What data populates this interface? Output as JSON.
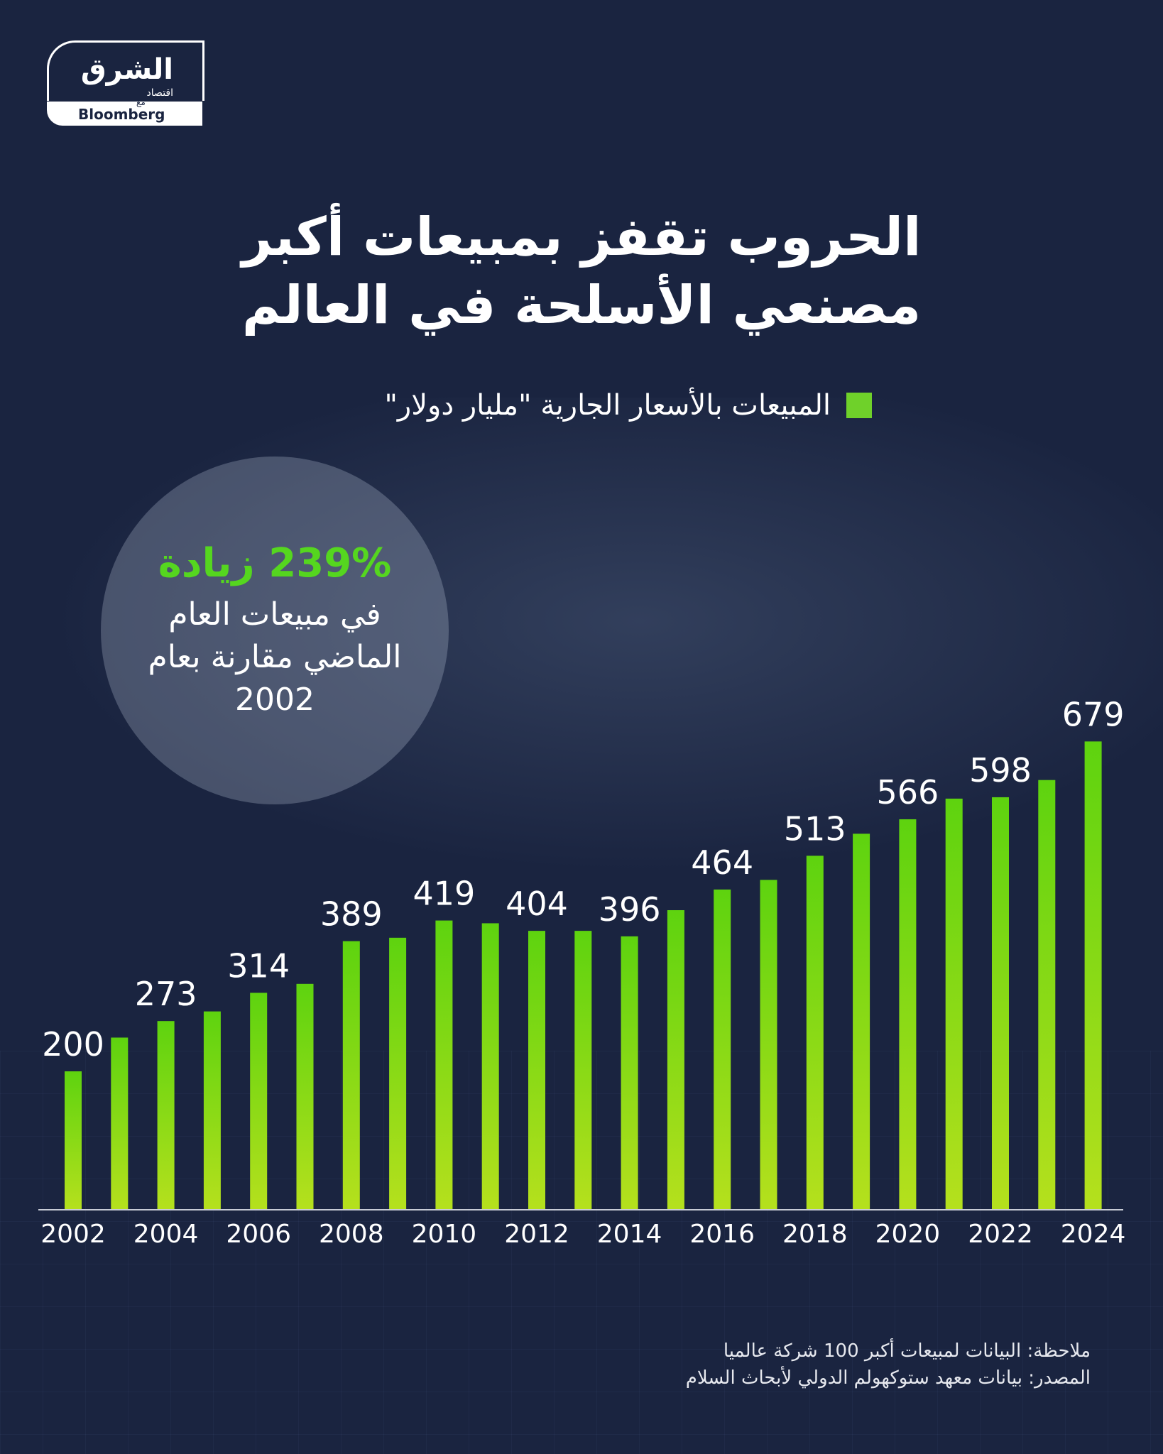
{
  "logo": {
    "main": "الشرق",
    "sub": "اقتصاد",
    "with": "مع",
    "bloomberg": "Bloomberg"
  },
  "title": {
    "line1": "الحروب تقفز بمبيعات أكبر",
    "line2": "مصنعي الأسلحة في العالم"
  },
  "legend": {
    "label": "المبيعات بالأسعار الجارية \"مليار دولار\"",
    "color": "#6fd12a"
  },
  "callout": {
    "headline": "239% زيادة",
    "line1": "في مبيعات العام",
    "line2": "الماضي مقارنة بعام",
    "line3": "2002"
  },
  "chart_data": {
    "type": "bar",
    "categories": [
      "2002",
      "2003",
      "2004",
      "2005",
      "2006",
      "2007",
      "2008",
      "2009",
      "2010",
      "2011",
      "2012",
      "2013",
      "2014",
      "2015",
      "2016",
      "2017",
      "2018",
      "2019",
      "2020",
      "2021",
      "2022",
      "2023",
      "2024"
    ],
    "values": [
      200,
      249,
      273,
      287,
      314,
      327,
      389,
      394,
      419,
      415,
      404,
      404,
      396,
      434,
      464,
      478,
      513,
      545,
      566,
      596,
      598,
      623,
      679
    ],
    "value_labels": [
      "200",
      "",
      "273",
      "",
      "314",
      "",
      "389",
      "",
      "419",
      "",
      "404",
      "",
      "396",
      "",
      "464",
      "",
      "513",
      "",
      "566",
      "",
      "598",
      "",
      "679"
    ],
    "tick_labels": [
      "2002",
      "",
      "2004",
      "",
      "2006",
      "",
      "2008",
      "",
      "2010",
      "",
      "2012",
      "",
      "2014",
      "",
      "2016",
      "",
      "2018",
      "",
      "2020",
      "",
      "2022",
      "",
      "2024"
    ],
    "ylim": [
      0,
      700
    ],
    "bar_color_top": "#5ed30f",
    "bar_color_bottom": "#b5e01d"
  },
  "footer": {
    "note": "ملاحظة: البيانات لمبيعات أكبر 100 شركة عالميا",
    "source": "المصدر: بيانات معهد ستوكهولم الدولي لأبحاث السلام"
  }
}
